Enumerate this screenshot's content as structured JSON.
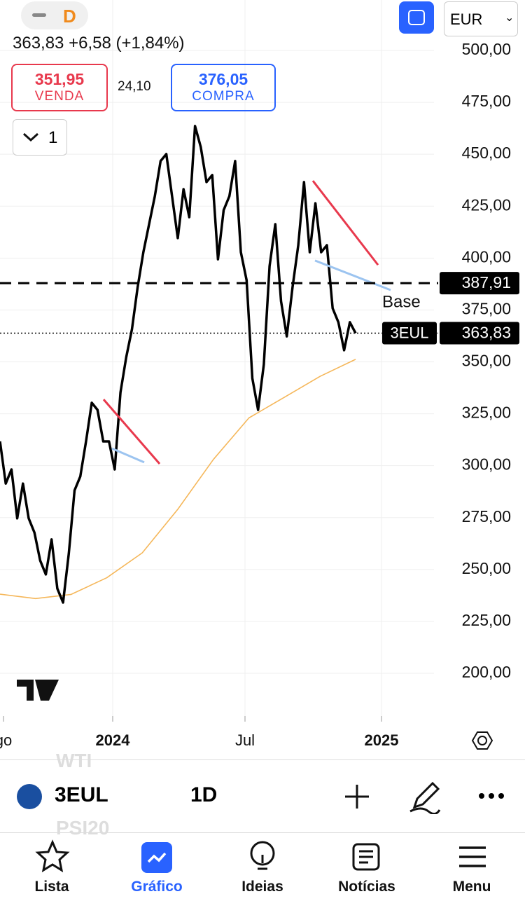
{
  "header": {
    "interval_badge": "D",
    "quote": "363,83 +6,58 (+1,84%)",
    "sell": {
      "price": "351,95",
      "label": "VENDA"
    },
    "spread": "24,10",
    "buy": {
      "price": "376,05",
      "label": "COMPRA"
    },
    "layers": "1",
    "currency": "EUR"
  },
  "chart": {
    "type": "line",
    "series": [
      {
        "name": "3EUL",
        "color": "#000000",
        "values": [
          311.7,
          291.4,
          298.2,
          274.6,
          291.4,
          274.6,
          267.8,
          254.3,
          247.6,
          264.5,
          240.8,
          234.1,
          257.7,
          288.1,
          294.8,
          311.7,
          330.3,
          326.9,
          311.7,
          311.7,
          298.2,
          335.3,
          352.2,
          365.7,
          385.9,
          402.8,
          416.3,
          429.8,
          446.7,
          450.1,
          429.8,
          409.6,
          433.2,
          419.7,
          463.6,
          453.5,
          436.6,
          440.0,
          399.4,
          423.1,
          429.8,
          446.7,
          402.8,
          389.3,
          342.1,
          326.9,
          348.8,
          396.1,
          416.3,
          379.2,
          362.3,
          385.9,
          406.2,
          436.6,
          402.8,
          426.4,
          402.8,
          406.2,
          375.8,
          369.1,
          355.6,
          369.1,
          363.83
        ]
      },
      {
        "color": "#f5b75a",
        "values": [
          238.1,
          236,
          238,
          246,
          258,
          279,
          303,
          323,
          333,
          343,
          351.2
        ]
      }
    ],
    "trendlines": [
      {
        "color": "#e8394d",
        "values": [
          331.9,
          300.9
        ]
      },
      {
        "color": "#9cc4f0",
        "values": [
          308.3,
          301.6
        ]
      },
      {
        "color": "#e8394d",
        "values": [
          437.2,
          396.7
        ]
      },
      {
        "color": "#9cc4f0",
        "values": [
          398.8,
          384.6
        ]
      }
    ],
    "annotation": "Base",
    "levels": [
      {
        "value": 387.91,
        "label": "387,91",
        "style": "dashed"
      },
      {
        "value": 363.83,
        "label": "363,83",
        "symbol": "3EUL",
        "style": "dotted"
      }
    ],
    "ylim": [
      200,
      500
    ],
    "yticks": [
      {
        "value": 500,
        "label": "500,00"
      },
      {
        "value": 475,
        "label": "475,00"
      },
      {
        "value": 450,
        "label": "450,00"
      },
      {
        "value": 425,
        "label": "425,00"
      },
      {
        "value": 400,
        "label": "400,00"
      },
      {
        "value": 375,
        "label": "375,00"
      },
      {
        "value": 350,
        "label": "350,00"
      },
      {
        "value": 325,
        "label": "325,00"
      },
      {
        "value": 300,
        "label": "300,00"
      },
      {
        "value": 275,
        "label": "275,00"
      },
      {
        "value": 250,
        "label": "250,00"
      },
      {
        "value": 225,
        "label": "225,00"
      },
      {
        "value": 200,
        "label": "200,00"
      }
    ],
    "xlabels": [
      "go",
      "2024",
      "Jul",
      "2025"
    ],
    "grid": true
  },
  "toolbar": {
    "symbol": "3EUL",
    "interval": "1D",
    "ghost": [
      "WTI",
      "PSI20"
    ]
  },
  "nav": [
    "Lista",
    "Gráfico",
    "Ideias",
    "Notícias",
    "Menu"
  ]
}
